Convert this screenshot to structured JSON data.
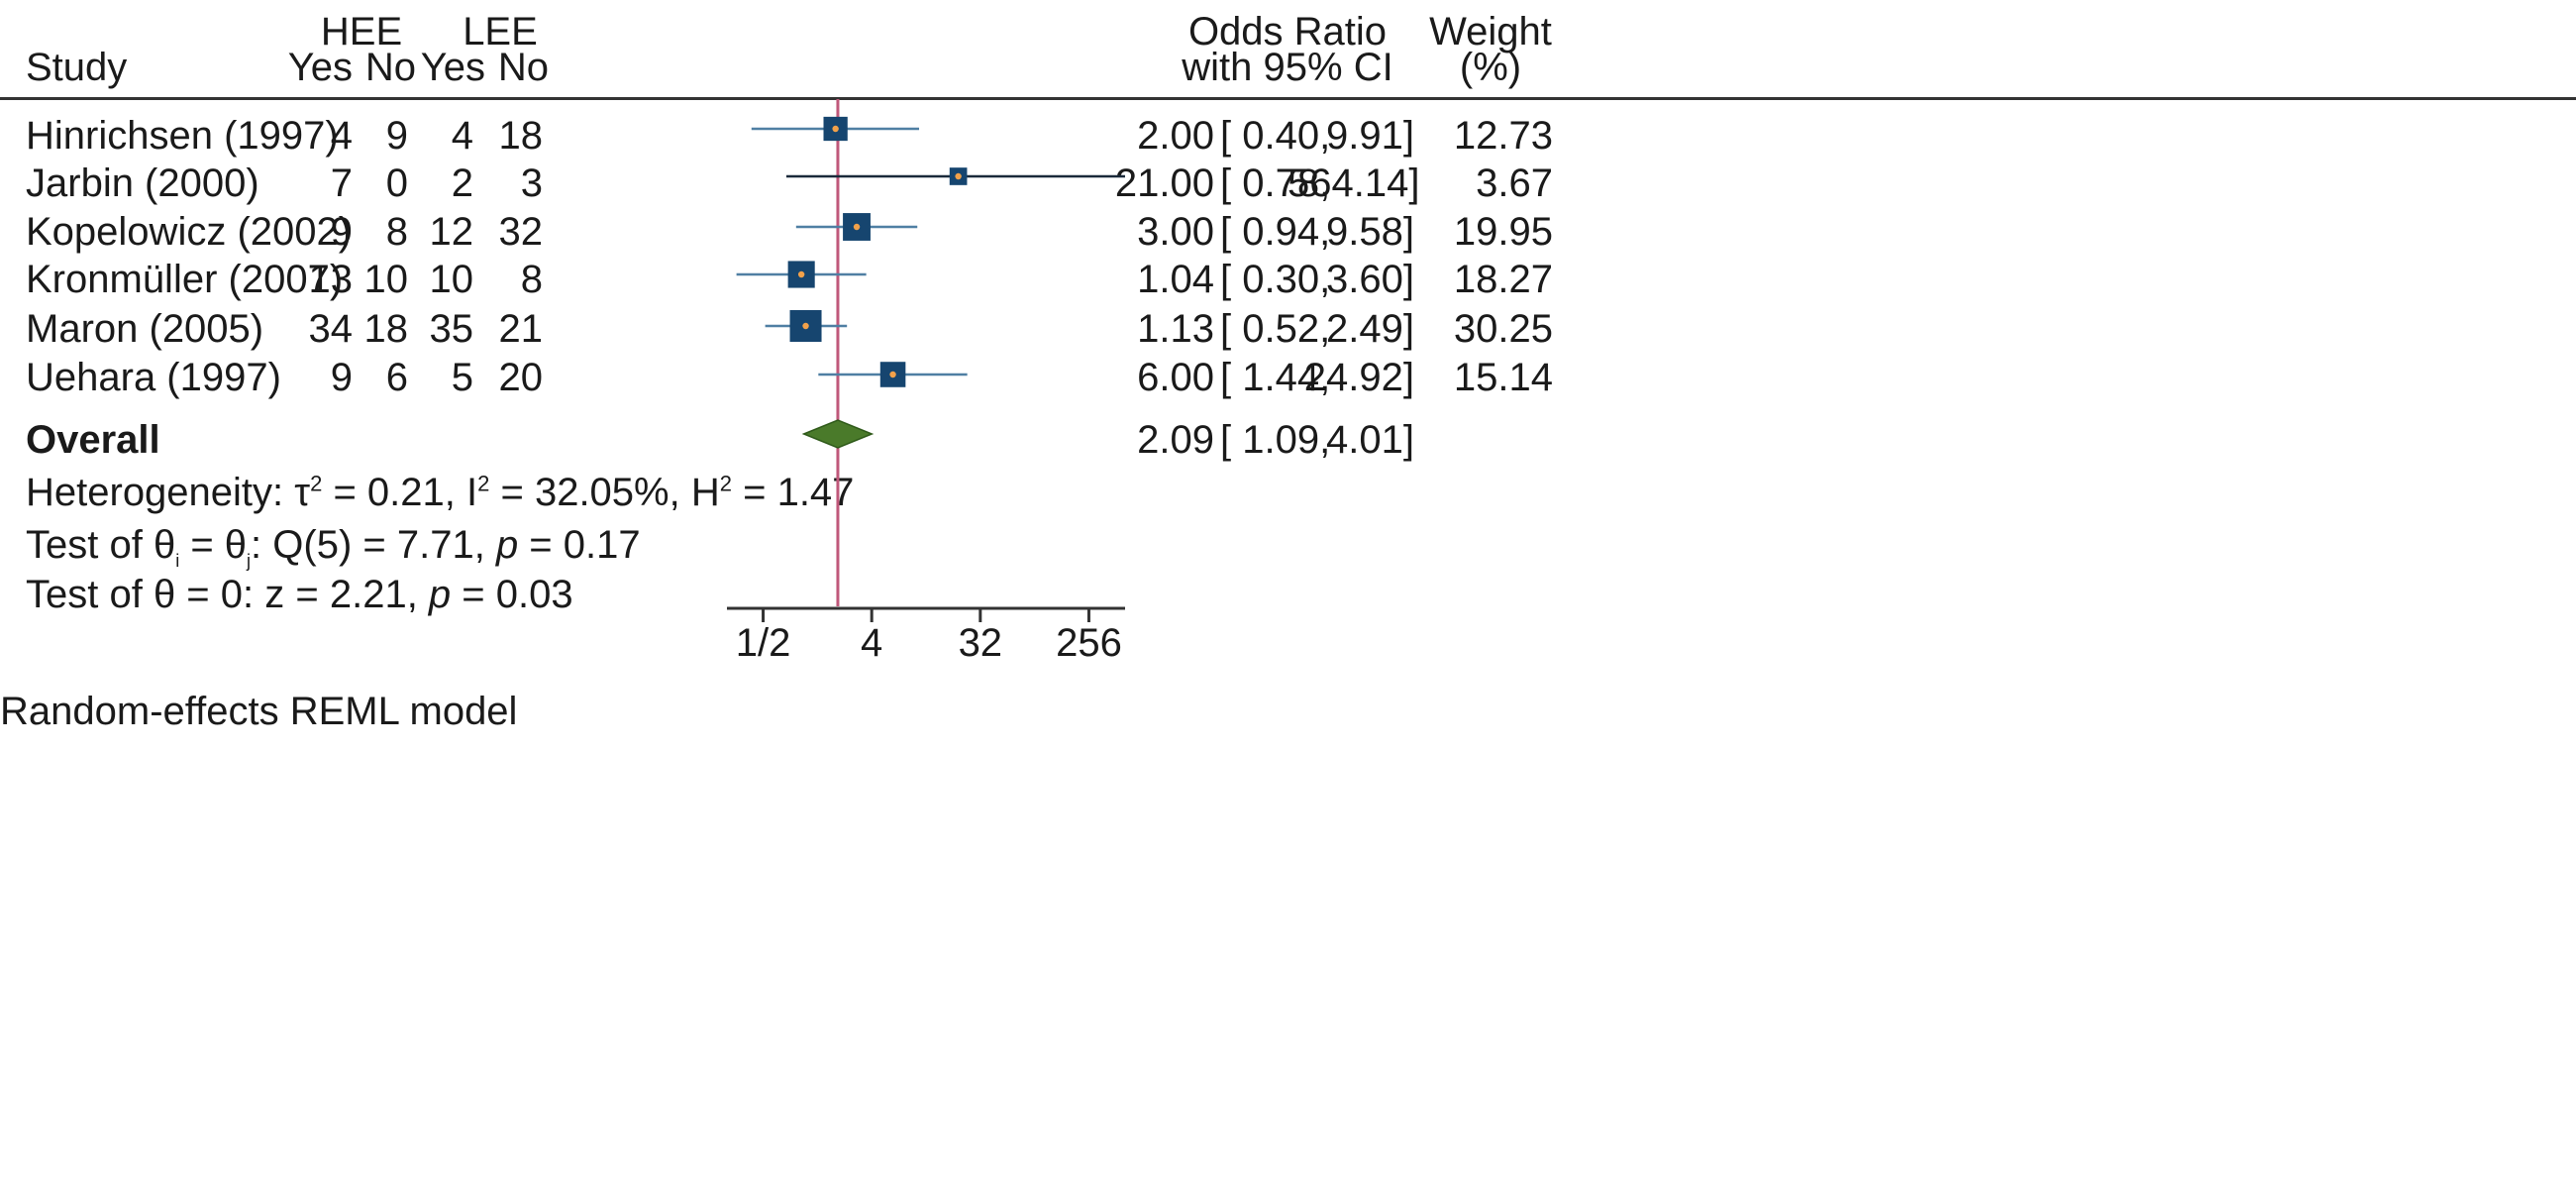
{
  "chart_data": {
    "type": "forest",
    "headers": {
      "study": "Study",
      "group1": "HEE",
      "group2": "LEE",
      "yes": "Yes",
      "no": "No",
      "or_line1": "Odds Ratio",
      "or_line2": "with 95% CI",
      "weight_line1": "Weight",
      "weight_line2": "(%)"
    },
    "studies": [
      {
        "name": "Hinrichsen (1997)",
        "hee_yes": "4",
        "hee_no": "9",
        "lee_yes": "4",
        "lee_no": "18",
        "or": 2.0,
        "lo": 0.4,
        "hi": 9.91,
        "or_text": "2.00",
        "lo_text": "[ 0.40,",
        "hi_text": "9.91]",
        "weight": "12.73"
      },
      {
        "name": "Jarbin (2000)",
        "hee_yes": "7",
        "hee_no": "0",
        "lee_yes": "2",
        "lee_no": "3",
        "or": 21.0,
        "lo": 0.78,
        "hi": 564.14,
        "or_text": "21.00",
        "lo_text": "[ 0.78,",
        "hi_text": "564.14]",
        "weight": "3.67"
      },
      {
        "name": "Kopelowicz (2002)",
        "hee_yes": "9",
        "hee_no": "8",
        "lee_yes": "12",
        "lee_no": "32",
        "or": 3.0,
        "lo": 0.94,
        "hi": 9.58,
        "or_text": "3.00",
        "lo_text": "[ 0.94,",
        "hi_text": "9.58]",
        "weight": "19.95"
      },
      {
        "name": "Kronmüller (2007)",
        "hee_yes": "13",
        "hee_no": "10",
        "lee_yes": "10",
        "lee_no": "8",
        "or": 1.04,
        "lo": 0.3,
        "hi": 3.6,
        "or_text": "1.04",
        "lo_text": "[ 0.30,",
        "hi_text": "3.60]",
        "weight": "18.27"
      },
      {
        "name": "Maron (2005)",
        "hee_yes": "34",
        "hee_no": "18",
        "lee_yes": "35",
        "lee_no": "21",
        "or": 1.13,
        "lo": 0.52,
        "hi": 2.49,
        "or_text": "1.13",
        "lo_text": "[ 0.52,",
        "hi_text": "2.49]",
        "weight": "30.25"
      },
      {
        "name": "Uehara (1997)",
        "hee_yes": "9",
        "hee_no": "6",
        "lee_yes": "5",
        "lee_no": "20",
        "or": 6.0,
        "lo": 1.44,
        "hi": 24.92,
        "or_text": "6.00",
        "lo_text": "[ 1.44,",
        "hi_text": "24.92]",
        "weight": "15.14"
      }
    ],
    "overall": {
      "label": "Overall",
      "or": 2.09,
      "lo": 1.09,
      "hi": 4.01,
      "or_text": "2.09",
      "lo_text": "[ 1.09,",
      "hi_text": "4.01]"
    },
    "stats": {
      "het_prefix": "Heterogeneity: τ",
      "het_sup1": "2",
      "het_mid1": " = 0.21, I",
      "het_sup2": "2",
      "het_mid2": " = 32.05%, H",
      "het_sup3": "2",
      "het_end": " = 1.47",
      "q_prefix": "Test of θ",
      "q_sub1": "i",
      "q_mid": " = θ",
      "q_sub2": "j",
      "q_text": ": Q(5) = 7.71, ",
      "q_p": "p",
      "q_end": " = 0.17",
      "z_text": "Test of θ = 0: z = 2.21, ",
      "z_p": "p",
      "z_end": " = 0.03"
    },
    "x_scale": "log2",
    "xlim": [
      0.25,
      600
    ],
    "reference_line": 2.09,
    "ticks": [
      0.5,
      4,
      32,
      256
    ],
    "tick_labels": [
      "1/2",
      "4",
      "32",
      "256"
    ],
    "axis_range": [
      0.25,
      512
    ],
    "footer": "Random-effects REML model",
    "colors": {
      "box": "#16456f",
      "ci": "#4f7fa3",
      "ci_dark": "#1a2a3a",
      "dot": "#f2a14a",
      "diamond": "#4a7a2a",
      "diamond_edge": "#2f5a1a",
      "refline": "#c0587a"
    }
  }
}
